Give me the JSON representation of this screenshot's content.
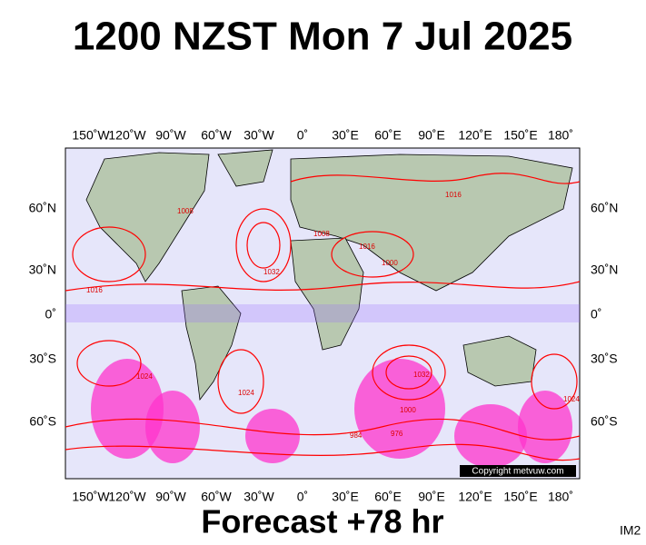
{
  "header": {
    "title": "1200 NZST Mon 7 Jul 2025"
  },
  "map": {
    "longitude_labels": [
      "150˚W",
      "120˚W",
      "90˚W",
      "60˚W",
      "30˚W",
      "0˚",
      "30˚E",
      "60˚E",
      "90˚E",
      "120˚E",
      "150˚E",
      "180˚"
    ],
    "latitude_labels": [
      "60˚N",
      "30˚N",
      "0˚",
      "30˚S",
      "60˚S"
    ],
    "isobar_labels": [
      "1016",
      "1008",
      "1024",
      "1032",
      "1016",
      "1008",
      "1000",
      "1024",
      "1032",
      "1000",
      "984",
      "976",
      "1024",
      "1016"
    ],
    "copyright": "Copyright metvuw.com"
  },
  "footer": {
    "forecast": "Forecast +78 hr",
    "image_id": "IM2"
  }
}
